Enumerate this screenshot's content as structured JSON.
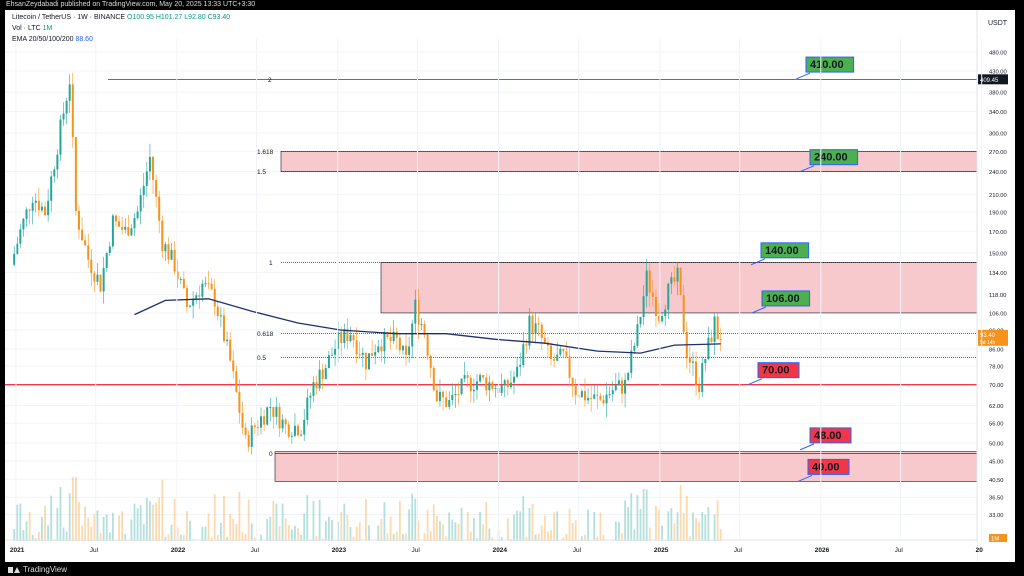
{
  "publisher": {
    "text": "EhsanZeydabadi published on TradingView.com, May 20, 2025 13:33 UTC+3:30"
  },
  "legend": {
    "symbol": "Litecoin / TetherUS · 1W · BINANCE",
    "ohlc": "O100.95  H101.27  L92.80  C93.40",
    "vol_label": "Vol · LTC",
    "vol_value": "1M",
    "ema_label": "EMA 20/50/100/200",
    "ema_value": "88.60"
  },
  "footer": {
    "brand": "TradingView"
  },
  "colors": {
    "up": "#26a69a",
    "down": "#f7931a",
    "ema": "#1e2f6f",
    "zone": "#f8c9cc",
    "red_line": "#f23645",
    "label_green": "#4caf50",
    "label_red": "#f23645"
  },
  "chart_data": {
    "type": "candlestick",
    "y_axis": {
      "currency": "USDT",
      "scale": "log",
      "ticks": [
        "480.00",
        "430.00",
        "380.00",
        "340.00",
        "300.00",
        "270.00",
        "240.00",
        "210.00",
        "190.00",
        "170.00",
        "150.00",
        "134.00",
        "118.00",
        "106.00",
        "96.00",
        "86.00",
        "78.00",
        "70.00",
        "62.00",
        "56.00",
        "50.00",
        "45.00",
        "40.50",
        "36.50",
        "33.00"
      ],
      "range": [
        29,
        520
      ]
    },
    "x_axis": {
      "ticks": [
        "2021",
        "Jul",
        "2022",
        "Jul",
        "2023",
        "Jul",
        "2024",
        "Jul",
        "2025",
        "Jul",
        "2026",
        "Jul",
        "20"
      ]
    },
    "price_badges": {
      "high_marker": "409.45",
      "last": "93.40",
      "countdown": "5d 14h",
      "volume": "1M"
    },
    "fib_levels": [
      {
        "label": "2",
        "price": 409.45
      },
      {
        "label": "1.618",
        "price": 270
      },
      {
        "label": "1.5",
        "price": 240
      },
      {
        "label": "1",
        "price": 142
      },
      {
        "label": "0.618",
        "price": 94
      },
      {
        "label": "0.5",
        "price": 82
      },
      {
        "label": "0",
        "price": 47
      }
    ],
    "zones": [
      {
        "from": 240,
        "to": 270
      },
      {
        "from": 106,
        "to": 142
      },
      {
        "from": 40,
        "to": 47.5
      }
    ],
    "support_line": 70,
    "targets": [
      {
        "label": "410.00",
        "price": 410,
        "color": "green"
      },
      {
        "label": "240.00",
        "price": 240,
        "color": "green"
      },
      {
        "label": "140.00",
        "price": 140,
        "color": "green"
      },
      {
        "label": "106.00",
        "price": 106,
        "color": "green"
      },
      {
        "label": "70.00",
        "price": 70,
        "color": "red"
      },
      {
        "label": "48.00",
        "price": 48,
        "color": "red"
      },
      {
        "label": "40.00",
        "price": 40,
        "color": "red"
      }
    ],
    "close_path": [
      [
        "2020-12-28",
        140
      ],
      [
        "2021-01-18",
        170
      ],
      [
        "2021-02-15",
        210
      ],
      [
        "2021-03-15",
        190
      ],
      [
        "2021-04-12",
        280
      ],
      [
        "2021-05-10",
        409
      ],
      [
        "2021-05-24",
        190
      ],
      [
        "2021-06-21",
        145
      ],
      [
        "2021-07-19",
        125
      ],
      [
        "2021-08-16",
        180
      ],
      [
        "2021-09-13",
        170
      ],
      [
        "2021-10-11",
        190
      ],
      [
        "2021-11-08",
        260
      ],
      [
        "2021-12-06",
        160
      ],
      [
        "2022-01-03",
        140
      ],
      [
        "2022-01-31",
        110
      ],
      [
        "2022-03-07",
        125
      ],
      [
        "2022-04-04",
        115
      ],
      [
        "2022-05-09",
        80
      ],
      [
        "2022-06-13",
        50
      ],
      [
        "2022-07-04",
        55
      ],
      [
        "2022-08-08",
        62
      ],
      [
        "2022-09-12",
        55
      ],
      [
        "2022-10-17",
        55
      ],
      [
        "2022-11-14",
        70
      ],
      [
        "2022-12-12",
        78
      ],
      [
        "2023-01-09",
        90
      ],
      [
        "2023-02-06",
        95
      ],
      [
        "2023-03-13",
        80
      ],
      [
        "2023-04-10",
        90
      ],
      [
        "2023-05-22",
        90
      ],
      [
        "2023-06-12",
        80
      ],
      [
        "2023-07-03",
        110
      ],
      [
        "2023-07-24",
        95
      ],
      [
        "2023-08-21",
        65
      ],
      [
        "2023-09-18",
        63
      ],
      [
        "2023-10-23",
        70
      ],
      [
        "2023-11-27",
        72
      ],
      [
        "2023-12-25",
        70
      ],
      [
        "2024-01-22",
        68
      ],
      [
        "2024-02-19",
        75
      ],
      [
        "2024-03-18",
        100
      ],
      [
        "2024-04-08",
        95
      ],
      [
        "2024-05-06",
        80
      ],
      [
        "2024-06-03",
        82
      ],
      [
        "2024-07-01",
        68
      ],
      [
        "2024-07-29",
        65
      ],
      [
        "2024-08-26",
        64
      ],
      [
        "2024-09-23",
        68
      ],
      [
        "2024-10-21",
        70
      ],
      [
        "2024-11-18",
        95
      ],
      [
        "2024-12-09",
        130
      ],
      [
        "2025-01-06",
        105
      ],
      [
        "2025-01-27",
        120
      ],
      [
        "2025-02-17",
        130
      ],
      [
        "2025-03-10",
        85
      ],
      [
        "2025-04-07",
        70
      ],
      [
        "2025-04-21",
        82
      ],
      [
        "2025-05-12",
        100
      ],
      [
        "2025-05-19",
        93.4
      ]
    ],
    "ema_path": [
      [
        "2021-09-27",
        105
      ],
      [
        "2021-12-06",
        114
      ],
      [
        "2022-03-14",
        115
      ],
      [
        "2022-06-20",
        107
      ],
      [
        "2022-10-03",
        100
      ],
      [
        "2023-01-09",
        96
      ],
      [
        "2023-05-15",
        94
      ],
      [
        "2023-09-04",
        94
      ],
      [
        "2023-12-25",
        91
      ],
      [
        "2024-04-15",
        89
      ],
      [
        "2024-08-12",
        85
      ],
      [
        "2024-11-18",
        84
      ],
      [
        "2025-02-03",
        88
      ],
      [
        "2025-05-19",
        88.6
      ]
    ]
  }
}
